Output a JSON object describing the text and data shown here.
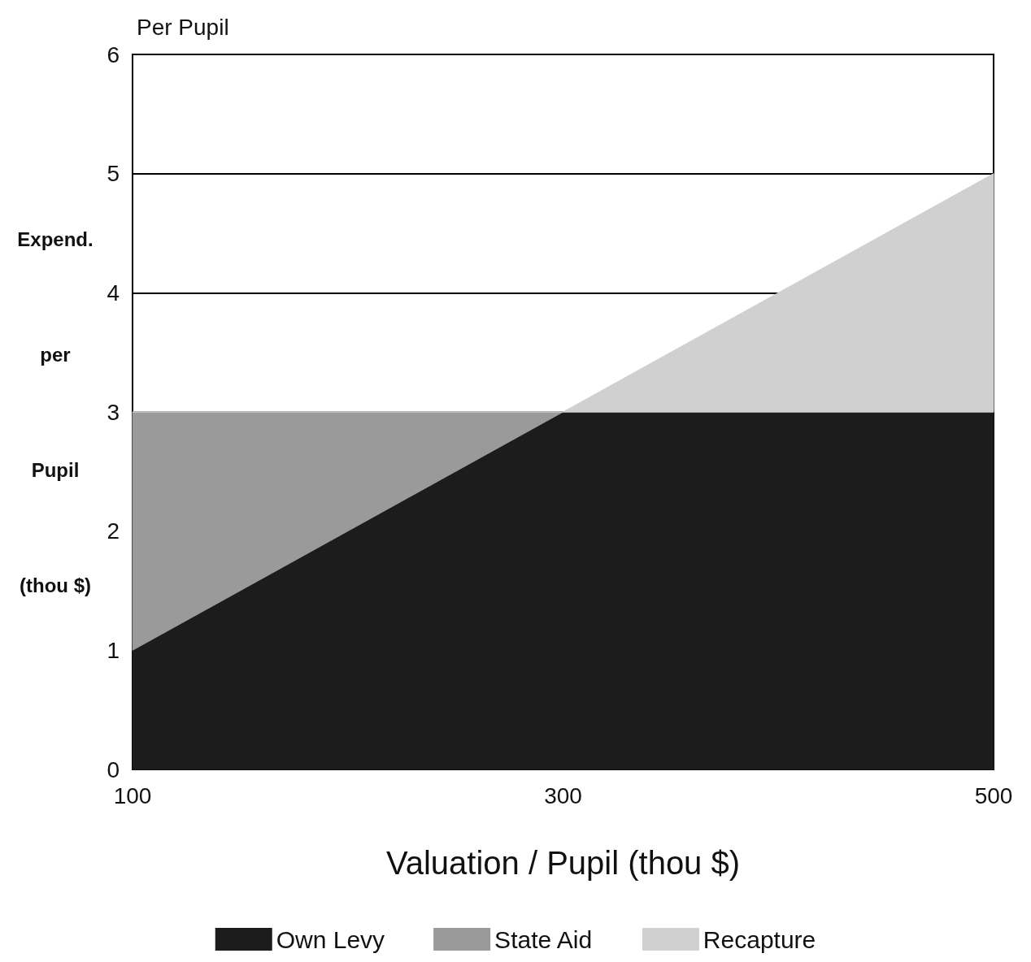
{
  "chart_data": {
    "type": "area",
    "title": "Per Pupil",
    "xlabel": "Valuation / Pupil (thou $)",
    "ylabel": "Expend.\nper\nPupil\n(thou $)",
    "x": [
      100,
      300,
      500
    ],
    "stacked": true,
    "series": [
      {
        "name": "Own Levy",
        "color": "#1c1c1c",
        "values": [
          1,
          3,
          3
        ]
      },
      {
        "name": "State Aid",
        "color": "#9a9a9a",
        "values": [
          2,
          0,
          0
        ]
      },
      {
        "name": "Recapture",
        "color": "#d0d0d0",
        "values": [
          0,
          0,
          2
        ]
      }
    ],
    "xlim": [
      100,
      500
    ],
    "xticks": [
      100,
      300,
      500
    ],
    "ylim": [
      0,
      6
    ],
    "yticks": [
      0,
      1,
      2,
      3,
      4,
      5,
      6
    ],
    "grid": "y",
    "legend": "bottom"
  }
}
